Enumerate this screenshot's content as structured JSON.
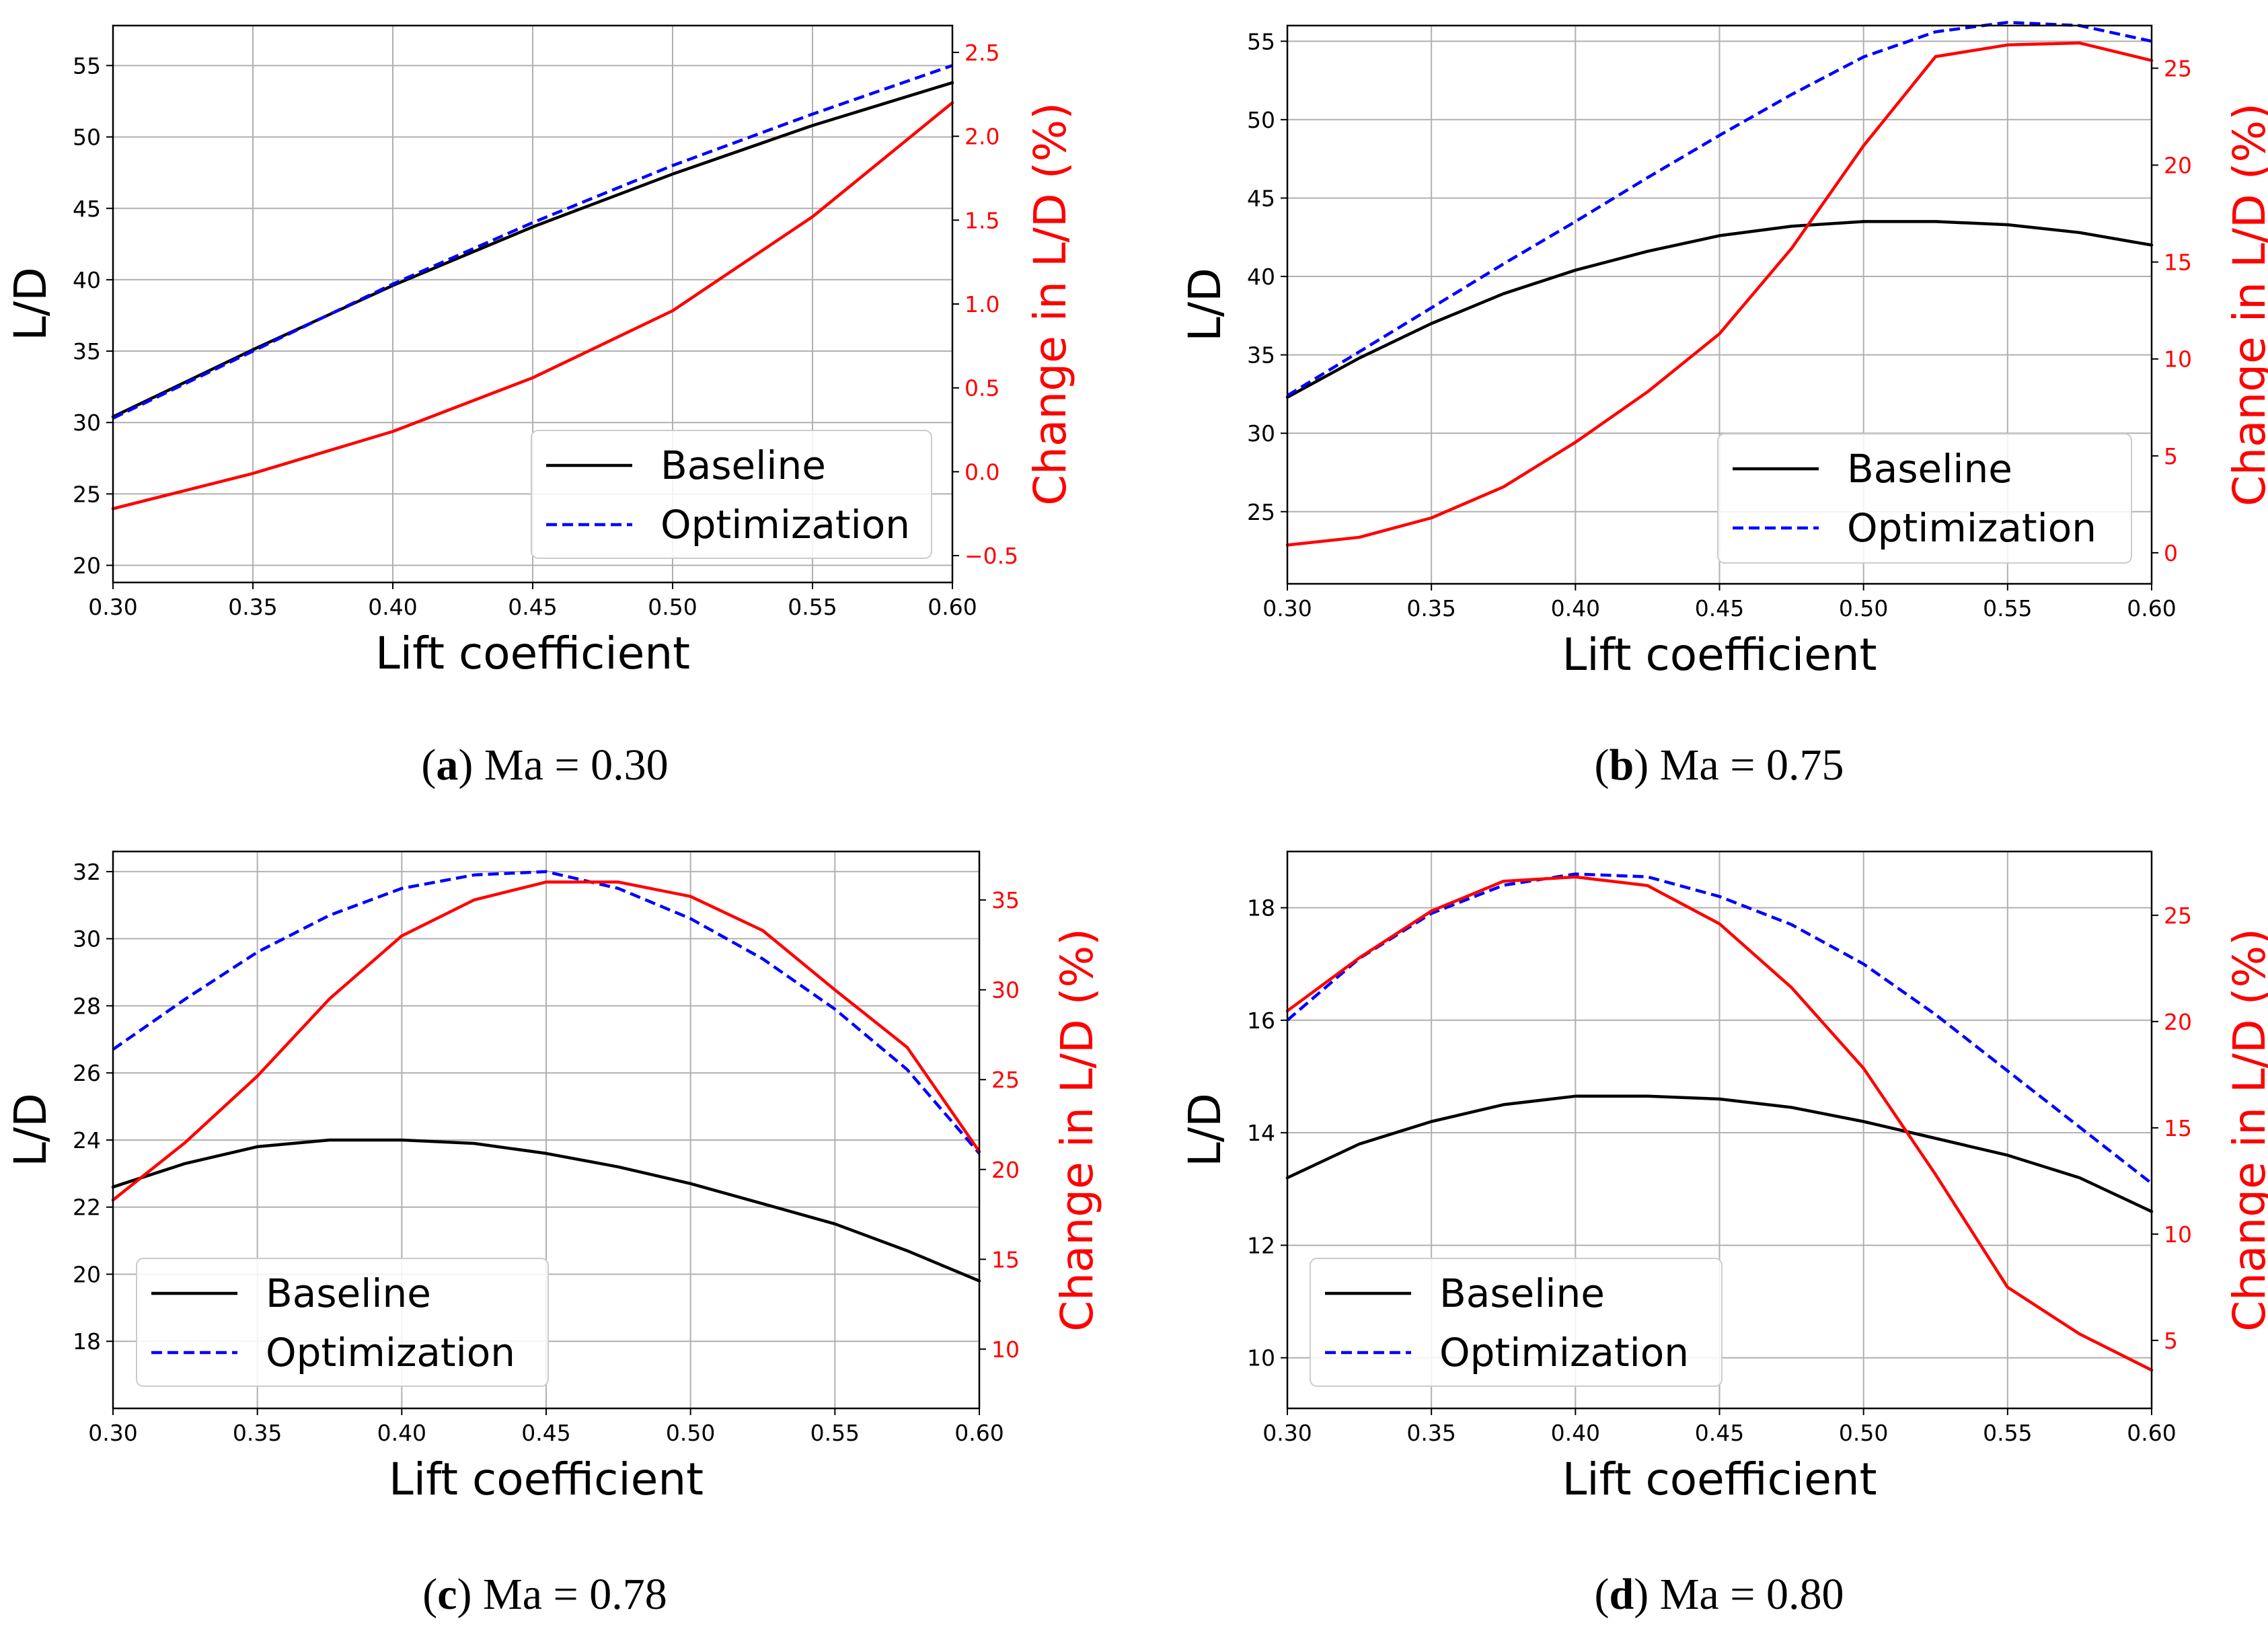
{
  "colors": {
    "baseline": "#000000",
    "optimization": "#0000ff",
    "change": "#ff0000",
    "grid": "#b0b0b0"
  },
  "chart_data": [
    {
      "type": "line",
      "caption": {
        "letter": "a",
        "text": "Ma = 0.30"
      },
      "xlabel": "Lift coefficient",
      "ylabel": "L/D",
      "y2label": "Change in L/D (%)",
      "xlim": [
        0.3,
        0.6
      ],
      "xticks": [
        "0.30",
        "0.35",
        "0.40",
        "0.45",
        "0.50",
        "0.55",
        "0.60"
      ],
      "ylim": [
        18.8,
        57.8
      ],
      "yticks": [
        "20",
        "25",
        "30",
        "35",
        "40",
        "45",
        "50",
        "55"
      ],
      "y2lim": [
        -0.66,
        2.66
      ],
      "y2ticks": [
        "−0.5",
        "0.0",
        "0.5",
        "1.0",
        "1.5",
        "2.0",
        "2.5"
      ],
      "legend": {
        "position": "lower-right",
        "entries": [
          "Baseline",
          "Optimization"
        ]
      },
      "x": [
        0.3,
        0.35,
        0.4,
        0.45,
        0.5,
        0.55,
        0.6
      ],
      "series": [
        {
          "name": "Baseline",
          "axis": "left",
          "style": "solid",
          "values": [
            30.4,
            35.1,
            39.6,
            43.7,
            47.4,
            50.8,
            53.8
          ]
        },
        {
          "name": "Optimization",
          "axis": "left",
          "style": "dashed",
          "values": [
            30.3,
            35.0,
            39.7,
            44.0,
            48.0,
            51.6,
            55.0
          ]
        },
        {
          "name": "Change in L/D",
          "axis": "right",
          "style": "solid",
          "values": [
            -0.22,
            -0.01,
            0.24,
            0.56,
            0.96,
            1.52,
            2.2
          ]
        }
      ]
    },
    {
      "type": "line",
      "caption": {
        "letter": "b",
        "text": "Ma = 0.75"
      },
      "xlabel": "Lift coefficient",
      "ylabel": "L/D",
      "y2label": "Change in L/D (%)",
      "xlim": [
        0.3,
        0.6
      ],
      "xticks": [
        "0.30",
        "0.35",
        "0.40",
        "0.45",
        "0.50",
        "0.55",
        "0.60"
      ],
      "ylim": [
        20.4,
        56.0
      ],
      "yticks": [
        "25",
        "30",
        "35",
        "40",
        "45",
        "50",
        "55"
      ],
      "y2lim": [
        -1.6,
        27.2
      ],
      "y2ticks": [
        "0",
        "5",
        "10",
        "15",
        "20",
        "25"
      ],
      "legend": {
        "position": "lower-right",
        "entries": [
          "Baseline",
          "Optimization"
        ]
      },
      "x": [
        0.3,
        0.325,
        0.35,
        0.375,
        0.4,
        0.425,
        0.45,
        0.475,
        0.5,
        0.525,
        0.55,
        0.575,
        0.6
      ],
      "series": [
        {
          "name": "Baseline",
          "axis": "left",
          "style": "solid",
          "values": [
            32.3,
            34.8,
            37.0,
            38.9,
            40.4,
            41.6,
            42.6,
            43.2,
            43.5,
            43.5,
            43.3,
            42.8,
            42.0
          ]
        },
        {
          "name": "Optimization",
          "axis": "left",
          "style": "dashed",
          "values": [
            32.4,
            35.2,
            38.0,
            40.8,
            43.5,
            46.3,
            49.0,
            51.6,
            54.0,
            55.6,
            56.2,
            56.0,
            55.0
          ]
        },
        {
          "name": "Change in L/D",
          "axis": "right",
          "style": "solid",
          "values": [
            0.4,
            0.8,
            1.8,
            3.4,
            5.7,
            8.3,
            11.3,
            15.7,
            21.0,
            25.6,
            26.2,
            26.3,
            25.4
          ]
        }
      ]
    },
    {
      "type": "line",
      "caption": {
        "letter": "c",
        "text": "Ma = 0.78"
      },
      "xlabel": "Lift coefficient",
      "ylabel": "L/D",
      "y2label": "Change in L/D (%)",
      "xlim": [
        0.3,
        0.6
      ],
      "xticks": [
        "0.30",
        "0.35",
        "0.40",
        "0.45",
        "0.50",
        "0.55",
        "0.60"
      ],
      "ylim": [
        16.0,
        32.6
      ],
      "yticks": [
        "18",
        "20",
        "22",
        "24",
        "26",
        "28",
        "30",
        "32"
      ],
      "y2lim": [
        6.7,
        37.7
      ],
      "y2ticks": [
        "10",
        "15",
        "20",
        "25",
        "30",
        "35"
      ],
      "legend": {
        "position": "lower-left",
        "entries": [
          "Baseline",
          "Optimization"
        ]
      },
      "x": [
        0.3,
        0.325,
        0.35,
        0.375,
        0.4,
        0.425,
        0.45,
        0.475,
        0.5,
        0.525,
        0.55,
        0.575,
        0.6
      ],
      "series": [
        {
          "name": "Baseline",
          "axis": "left",
          "style": "solid",
          "values": [
            22.6,
            23.3,
            23.8,
            24.0,
            24.0,
            23.9,
            23.6,
            23.2,
            22.7,
            22.1,
            21.5,
            20.7,
            19.8
          ]
        },
        {
          "name": "Optimization",
          "axis": "left",
          "style": "dashed",
          "values": [
            26.7,
            28.2,
            29.6,
            30.7,
            31.5,
            31.9,
            32.0,
            31.5,
            30.6,
            29.4,
            27.9,
            26.1,
            23.6
          ]
        },
        {
          "name": "Change in L/D",
          "axis": "right",
          "style": "solid",
          "values": [
            18.3,
            21.5,
            25.2,
            29.5,
            33.0,
            35.0,
            36.0,
            36.0,
            35.2,
            33.3,
            30.0,
            26.8,
            21.0
          ]
        }
      ]
    },
    {
      "type": "line",
      "caption": {
        "letter": "d",
        "text": "Ma = 0.80"
      },
      "xlabel": "Lift coefficient",
      "ylabel": "L/D",
      "y2label": "Change in L/D (%)",
      "xlim": [
        0.3,
        0.6
      ],
      "xticks": [
        "0.30",
        "0.35",
        "0.40",
        "0.45",
        "0.50",
        "0.55",
        "0.60"
      ],
      "ylim": [
        9.1,
        19.0
      ],
      "yticks": [
        "10",
        "12",
        "14",
        "16",
        "18"
      ],
      "y2lim": [
        1.8,
        28.0
      ],
      "y2ticks": [
        "5",
        "10",
        "15",
        "20",
        "25"
      ],
      "legend": {
        "position": "lower-left",
        "entries": [
          "Baseline",
          "Optimization"
        ]
      },
      "x": [
        0.3,
        0.325,
        0.35,
        0.375,
        0.4,
        0.425,
        0.45,
        0.475,
        0.5,
        0.525,
        0.55,
        0.575,
        0.6
      ],
      "series": [
        {
          "name": "Baseline",
          "axis": "left",
          "style": "solid",
          "values": [
            13.2,
            13.8,
            14.2,
            14.5,
            14.65,
            14.65,
            14.6,
            14.45,
            14.2,
            13.9,
            13.6,
            13.2,
            12.6
          ]
        },
        {
          "name": "Optimization",
          "axis": "left",
          "style": "dashed",
          "values": [
            16.0,
            17.1,
            17.9,
            18.4,
            18.6,
            18.55,
            18.2,
            17.7,
            17.0,
            16.1,
            15.1,
            14.1,
            13.1
          ]
        },
        {
          "name": "Change in L/D",
          "axis": "right",
          "style": "solid",
          "values": [
            20.5,
            23.0,
            25.2,
            26.6,
            26.8,
            26.4,
            24.6,
            21.6,
            17.8,
            12.8,
            7.5,
            5.3,
            3.6
          ]
        }
      ]
    }
  ]
}
